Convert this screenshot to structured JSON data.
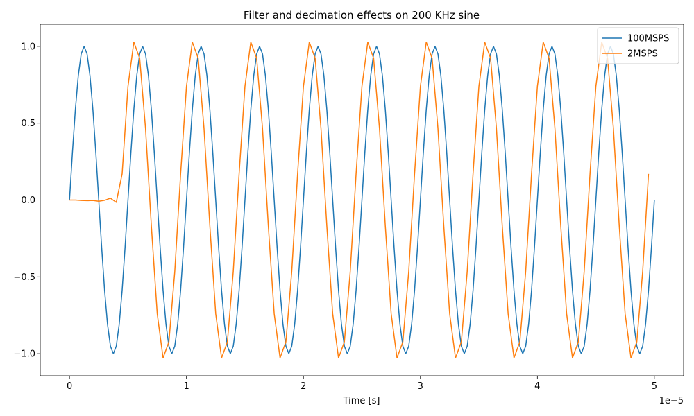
{
  "chart_data": {
    "type": "line",
    "title": "Filter and decimation effects on 200 KHz sine",
    "xlabel": "Time [s]",
    "x_offset_label": "1e−5",
    "xlim": [
      -0.25,
      5.25
    ],
    "ylim": [
      -1.144,
      1.144
    ],
    "xticks": [
      0,
      1,
      2,
      3,
      4,
      5
    ],
    "yticks": [
      {
        "value": -1,
        "label": "−1.0"
      },
      {
        "value": -0.5,
        "label": "−0.5"
      },
      {
        "value": 0,
        "label": "0.0"
      },
      {
        "value": 0.5,
        "label": "0.5"
      },
      {
        "value": 1,
        "label": "1.0"
      }
    ],
    "legend": "upper right",
    "series": [
      {
        "name": "100MSPS",
        "color": "#1f77b4",
        "x": [
          0,
          0.025,
          0.05,
          0.075,
          0.1,
          0.125,
          0.15,
          0.175,
          0.2,
          0.225,
          0.25,
          0.275,
          0.3,
          0.325,
          0.35,
          0.375,
          0.4,
          0.425,
          0.45,
          0.475,
          0.5,
          0.525,
          0.55,
          0.575,
          0.6,
          0.625,
          0.65,
          0.675,
          0.7,
          0.725,
          0.75,
          0.775,
          0.8,
          0.825,
          0.85,
          0.875,
          0.9,
          0.925,
          0.95,
          0.975,
          1,
          1.025,
          1.05,
          1.075,
          1.1,
          1.125,
          1.15,
          1.175,
          1.2,
          1.225,
          1.25,
          1.275,
          1.3,
          1.325,
          1.35,
          1.375,
          1.4,
          1.425,
          1.45,
          1.475,
          1.5,
          1.525,
          1.55,
          1.575,
          1.6,
          1.625,
          1.65,
          1.675,
          1.7,
          1.725,
          1.75,
          1.775,
          1.8,
          1.825,
          1.85,
          1.875,
          1.9,
          1.925,
          1.95,
          1.975,
          2,
          2.025,
          2.05,
          2.075,
          2.1,
          2.125,
          2.15,
          2.175,
          2.2,
          2.225,
          2.25,
          2.275,
          2.3,
          2.325,
          2.35,
          2.375,
          2.4,
          2.425,
          2.45,
          2.475,
          2.5,
          2.525,
          2.55,
          2.575,
          2.6,
          2.625,
          2.65,
          2.675,
          2.7,
          2.725,
          2.75,
          2.775,
          2.8,
          2.825,
          2.85,
          2.875,
          2.9,
          2.925,
          2.95,
          2.975,
          3,
          3.025,
          3.05,
          3.075,
          3.1,
          3.125,
          3.15,
          3.175,
          3.2,
          3.225,
          3.25,
          3.275,
          3.3,
          3.325,
          3.35,
          3.375,
          3.4,
          3.425,
          3.45,
          3.475,
          3.5,
          3.525,
          3.55,
          3.575,
          3.6,
          3.625,
          3.65,
          3.675,
          3.7,
          3.725,
          3.75,
          3.775,
          3.8,
          3.825,
          3.85,
          3.875,
          3.9,
          3.925,
          3.95,
          3.975,
          4,
          4.025,
          4.05,
          4.075,
          4.1,
          4.125,
          4.15,
          4.175,
          4.2,
          4.225,
          4.25,
          4.275,
          4.3,
          4.325,
          4.35,
          4.375,
          4.4,
          4.425,
          4.45,
          4.475,
          4.5,
          4.525,
          4.55,
          4.575,
          4.6,
          4.625,
          4.65,
          4.675,
          4.7,
          4.725,
          4.75,
          4.775,
          4.8,
          4.825,
          4.85,
          4.875,
          4.9,
          4.925,
          4.95,
          4.975,
          5
        ],
        "values": [
          0,
          0.309,
          0.588,
          0.809,
          0.951,
          1,
          0.951,
          0.809,
          0.588,
          0.309,
          0,
          -0.309,
          -0.588,
          -0.809,
          -0.951,
          -1,
          -0.951,
          -0.809,
          -0.588,
          -0.309,
          0,
          0.309,
          0.588,
          0.809,
          0.951,
          1,
          0.951,
          0.809,
          0.588,
          0.309,
          0,
          -0.309,
          -0.588,
          -0.809,
          -0.951,
          -1,
          -0.951,
          -0.809,
          -0.588,
          -0.309,
          0,
          0.309,
          0.588,
          0.809,
          0.951,
          1,
          0.951,
          0.809,
          0.588,
          0.309,
          0,
          -0.309,
          -0.588,
          -0.809,
          -0.951,
          -1,
          -0.951,
          -0.809,
          -0.588,
          -0.309,
          0,
          0.309,
          0.588,
          0.809,
          0.951,
          1,
          0.951,
          0.809,
          0.588,
          0.309,
          0,
          -0.309,
          -0.588,
          -0.809,
          -0.951,
          -1,
          -0.951,
          -0.809,
          -0.588,
          -0.309,
          0,
          0.309,
          0.588,
          0.809,
          0.951,
          1,
          0.951,
          0.809,
          0.588,
          0.309,
          0,
          -0.309,
          -0.588,
          -0.809,
          -0.951,
          -1,
          -0.951,
          -0.809,
          -0.588,
          -0.309,
          0,
          0.309,
          0.588,
          0.809,
          0.951,
          1,
          0.951,
          0.809,
          0.588,
          0.309,
          0,
          -0.309,
          -0.588,
          -0.809,
          -0.951,
          -1,
          -0.951,
          -0.809,
          -0.588,
          -0.309,
          0,
          0.309,
          0.588,
          0.809,
          0.951,
          1,
          0.951,
          0.809,
          0.588,
          0.309,
          0,
          -0.309,
          -0.588,
          -0.809,
          -0.951,
          -1,
          -0.951,
          -0.809,
          -0.588,
          -0.309,
          0,
          0.309,
          0.588,
          0.809,
          0.951,
          1,
          0.951,
          0.809,
          0.588,
          0.309,
          0,
          -0.309,
          -0.588,
          -0.809,
          -0.951,
          -1,
          -0.951,
          -0.809,
          -0.588,
          -0.309,
          0,
          0.309,
          0.588,
          0.809,
          0.951,
          1,
          0.951,
          0.809,
          0.588,
          0.309,
          0,
          -0.309,
          -0.588,
          -0.809,
          -0.951,
          -1,
          -0.951,
          -0.809,
          -0.588,
          -0.309,
          0,
          0.309,
          0.588,
          0.809,
          0.951,
          1,
          0.951,
          0.809,
          0.588,
          0.309,
          0,
          -0.309,
          -0.588,
          -0.809,
          -0.951,
          -1,
          -0.951,
          -0.809,
          -0.588,
          -0.309,
          0
        ]
      },
      {
        "name": "2MSPS",
        "color": "#ff7f0e",
        "x": [
          0,
          0.05,
          0.1,
          0.15,
          0.2,
          0.25,
          0.3,
          0.35,
          0.4,
          0.45,
          0.5,
          0.55,
          0.6,
          0.65,
          0.7,
          0.75,
          0.8,
          0.85,
          0.9,
          0.95,
          1,
          1.05,
          1.1,
          1.15,
          1.2,
          1.25,
          1.3,
          1.35,
          1.4,
          1.45,
          1.5,
          1.55,
          1.6,
          1.65,
          1.7,
          1.75,
          1.8,
          1.85,
          1.9,
          1.95,
          2,
          2.05,
          2.1,
          2.15,
          2.2,
          2.25,
          2.3,
          2.35,
          2.4,
          2.45,
          2.5,
          2.55,
          2.6,
          2.65,
          2.7,
          2.75,
          2.8,
          2.85,
          2.9,
          2.95,
          3,
          3.05,
          3.1,
          3.15,
          3.2,
          3.25,
          3.3,
          3.35,
          3.4,
          3.45,
          3.5,
          3.55,
          3.6,
          3.65,
          3.7,
          3.75,
          3.8,
          3.85,
          3.9,
          3.95,
          4,
          4.05,
          4.1,
          4.15,
          4.2,
          4.25,
          4.3,
          4.35,
          4.4,
          4.45,
          4.5,
          4.55,
          4.6,
          4.65,
          4.7,
          4.75,
          4.8,
          4.85,
          4.9,
          4.95
        ],
        "values": [
          0,
          0,
          -0.003,
          -0.004,
          -0.003,
          -0.008,
          -0.002,
          0.012,
          -0.015,
          0.17,
          0.74,
          1.028,
          0.923,
          0.466,
          -0.17,
          -0.74,
          -1.028,
          -0.923,
          -0.466,
          0.17,
          0.74,
          1.028,
          0.923,
          0.466,
          -0.17,
          -0.74,
          -1.028,
          -0.923,
          -0.466,
          0.17,
          0.74,
          1.028,
          0.923,
          0.466,
          -0.17,
          -0.74,
          -1.028,
          -0.923,
          -0.466,
          0.17,
          0.74,
          1.028,
          0.923,
          0.466,
          -0.17,
          -0.74,
          -1.028,
          -0.923,
          -0.466,
          0.17,
          0.74,
          1.028,
          0.923,
          0.466,
          -0.17,
          -0.74,
          -1.028,
          -0.923,
          -0.466,
          0.17,
          0.74,
          1.028,
          0.923,
          0.466,
          -0.17,
          -0.74,
          -1.028,
          -0.923,
          -0.466,
          0.17,
          0.74,
          1.028,
          0.923,
          0.466,
          -0.17,
          -0.74,
          -1.028,
          -0.923,
          -0.466,
          0.17,
          0.74,
          1.028,
          0.923,
          0.466,
          -0.17,
          -0.74,
          -1.028,
          -0.923,
          -0.466,
          0.17,
          0.74,
          1.028,
          0.923,
          0.466,
          -0.17,
          -0.74,
          -1.028,
          -0.923,
          -0.466,
          0.17
        ]
      }
    ]
  }
}
